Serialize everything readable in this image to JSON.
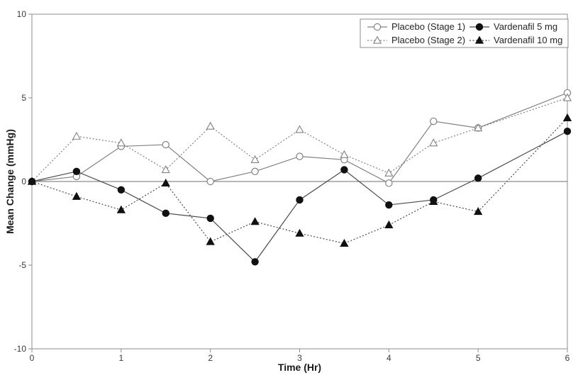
{
  "chart_data": {
    "type": "line",
    "x": [
      0,
      0.5,
      1,
      1.5,
      2,
      2.5,
      3,
      3.5,
      4,
      4.5,
      5,
      6
    ],
    "series": [
      {
        "name": "Placebo (Stage 1)",
        "marker": "circle-open",
        "line": "solid",
        "color": "#828282",
        "values": [
          0,
          0.3,
          2.1,
          2.2,
          0,
          0.6,
          1.5,
          1.3,
          -0.1,
          3.6,
          3.2,
          5.3
        ]
      },
      {
        "name": "Placebo (Stage 2)",
        "marker": "triangle-open",
        "line": "dotted",
        "color": "#828282",
        "values": [
          0,
          2.7,
          2.3,
          0.7,
          3.3,
          1.3,
          3.1,
          1.6,
          0.5,
          2.3,
          3.2,
          5.0
        ]
      },
      {
        "name": "Vardenafil 5 mg",
        "marker": "circle-filled",
        "line": "solid",
        "color": "#4a4a4a",
        "marker_color": "#111111",
        "values": [
          0,
          0.6,
          -0.5,
          -1.9,
          -2.2,
          -4.8,
          -1.1,
          0.7,
          -1.4,
          -1.1,
          0.2,
          3.0
        ]
      },
      {
        "name": "Vardenafil 10 mg",
        "marker": "triangle-filled",
        "line": "dotted",
        "color": "#4a4a4a",
        "marker_color": "#111111",
        "values": [
          0,
          -0.9,
          -1.7,
          -0.1,
          -3.6,
          -2.4,
          -3.1,
          -3.7,
          -2.6,
          -1.2,
          -1.8,
          3.8
        ]
      }
    ],
    "title": "",
    "xlabel": "Time (Hr)",
    "ylabel": "Mean Change (mmHg)",
    "xlim": [
      0,
      6
    ],
    "ylim": [
      -10,
      10
    ],
    "x_ticks": [
      0,
      1,
      2,
      3,
      4,
      5,
      6
    ],
    "y_ticks": [
      10,
      5,
      0,
      -5,
      -10
    ],
    "grid": false,
    "zero_line": true,
    "legend_position": "top-right",
    "colors": {
      "axis": "#8c8c8c",
      "zero_line": "#6e6e6e",
      "tick_text": "#3a3a3a",
      "legend_border": "#8c8c8c",
      "background": "#ffffff"
    }
  }
}
